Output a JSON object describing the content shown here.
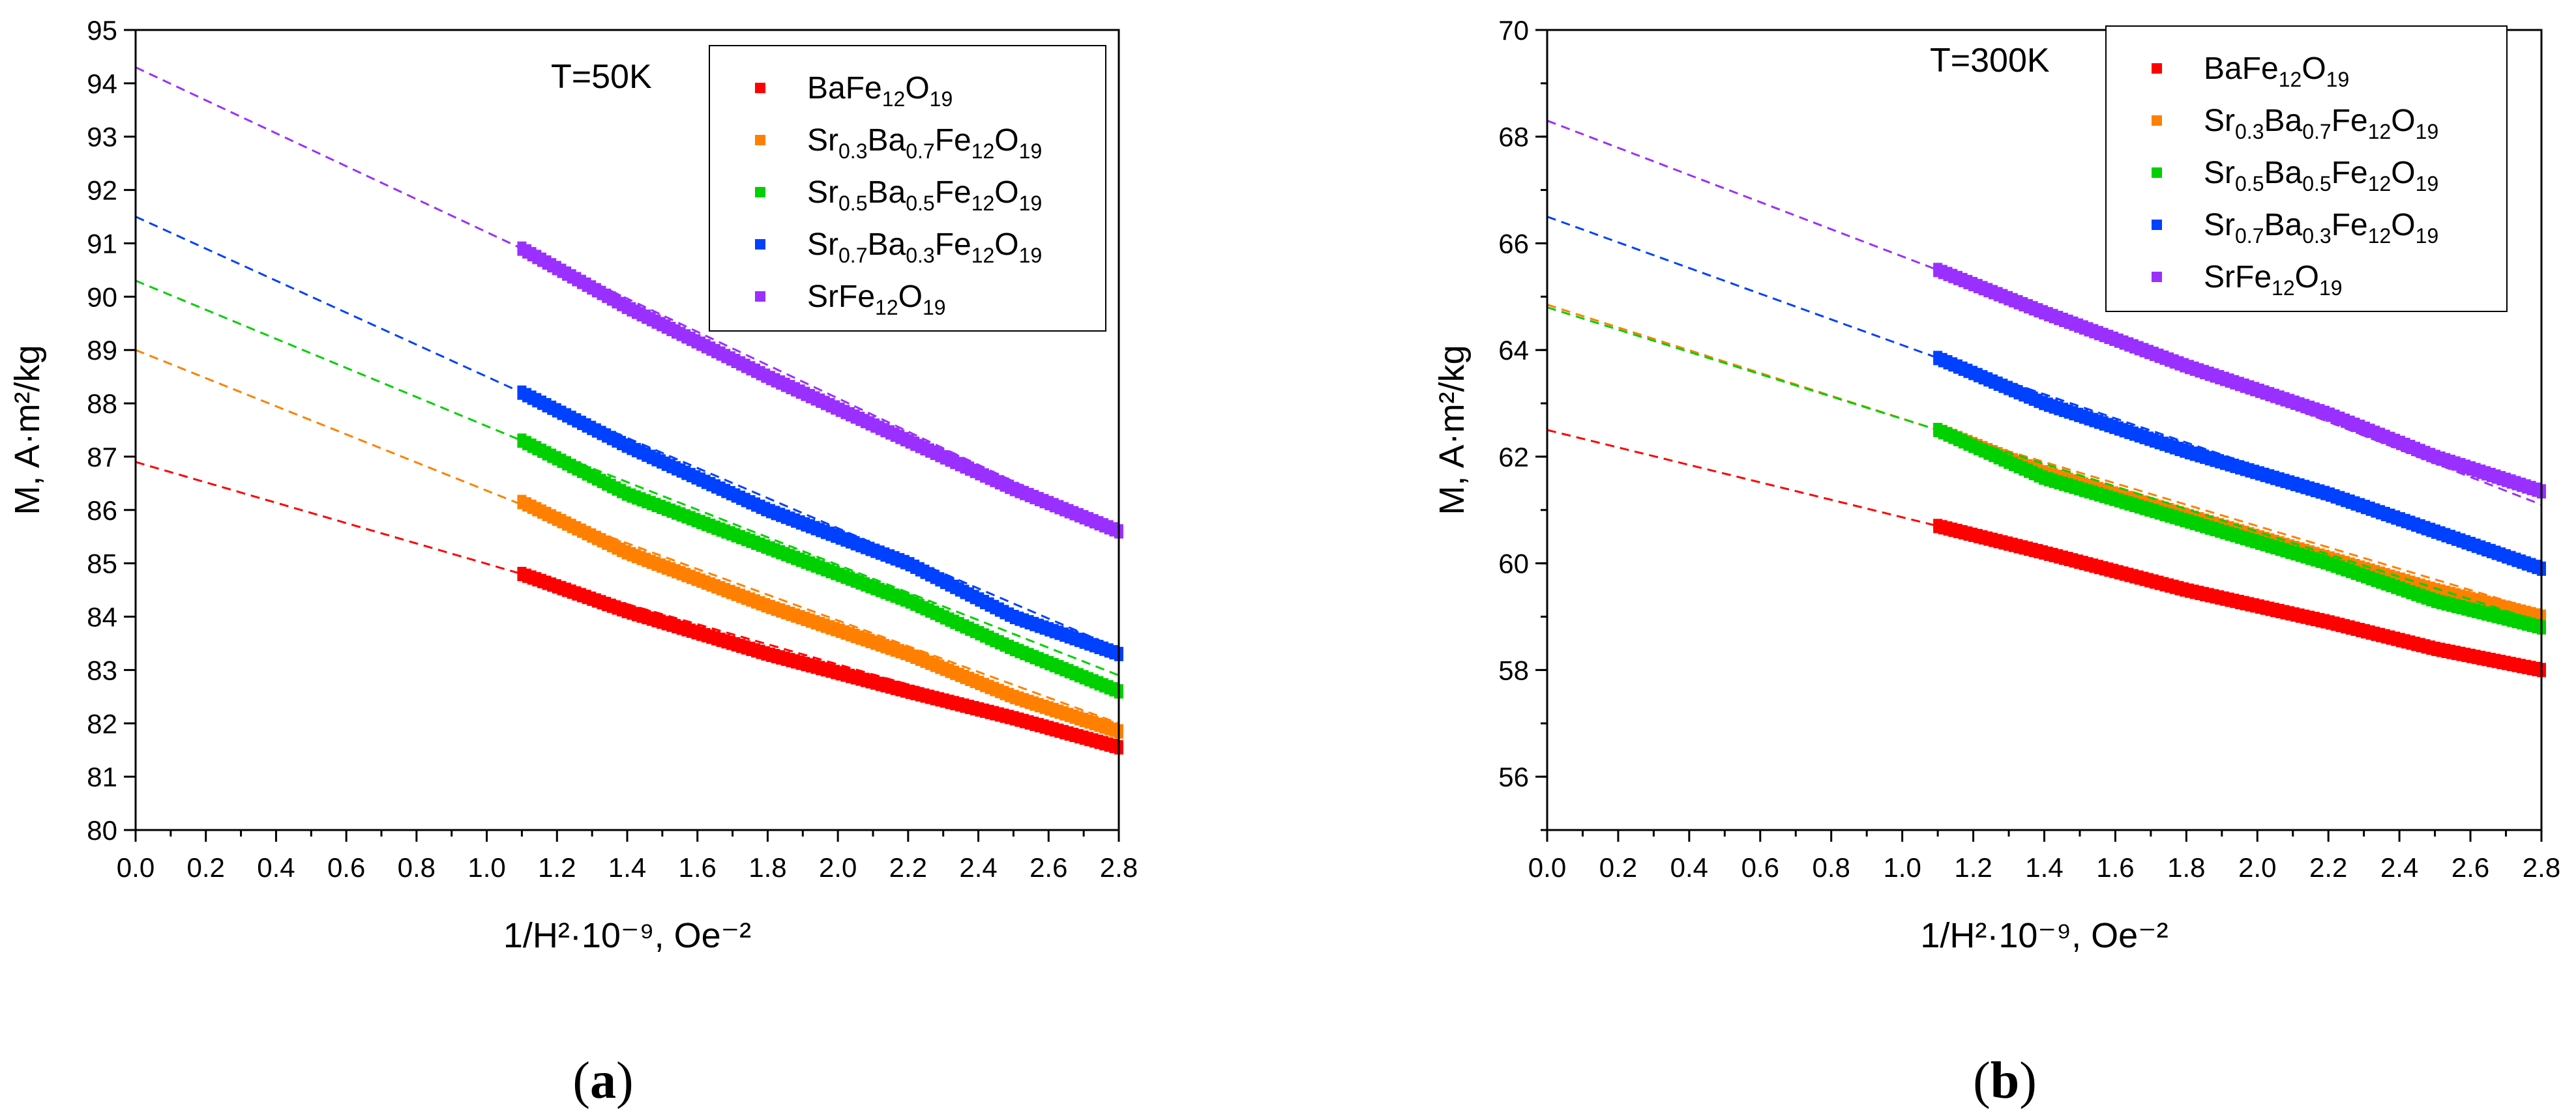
{
  "chart_data": [
    {
      "type": "scatter",
      "panel_label": "(a)",
      "panel_letter": "a",
      "annotation": "T=50K",
      "xlabel": "1/H²·10⁻⁹, Oe⁻²",
      "ylabel": "M, A·m²/kg",
      "xlim": [
        0.0,
        2.8
      ],
      "ylim": [
        80,
        95
      ],
      "x_ticks": [
        "0.0",
        "0.2",
        "0.4",
        "0.6",
        "0.8",
        "1.0",
        "1.2",
        "1.4",
        "1.6",
        "1.8",
        "2.0",
        "2.2",
        "2.4",
        "2.6",
        "2.8"
      ],
      "y_ticks": [
        "80",
        "81",
        "82",
        "83",
        "84",
        "85",
        "86",
        "87",
        "88",
        "89",
        "90",
        "91",
        "92",
        "93",
        "94",
        "95"
      ],
      "legend_position": "top-right",
      "grid": false,
      "series": [
        {
          "name": "BaFe12O19",
          "color": "#ff0000",
          "legend": [
            [
              "Ba"
            ],
            [
              "Fe"
            ],
            [
              "12",
              "sub"
            ],
            [
              "O"
            ],
            [
              "19",
              "sub"
            ]
          ],
          "data_x_range": [
            1.1,
            2.8
          ],
          "points": [
            [
              1.1,
              84.8
            ],
            [
              1.4,
              84.1
            ],
            [
              1.8,
              83.3
            ],
            [
              2.2,
              82.6
            ],
            [
              2.5,
              82.1
            ],
            [
              2.8,
              81.55
            ]
          ],
          "fit_line": [
            [
              0.0,
              86.9
            ],
            [
              1.1,
              84.8
            ],
            [
              2.8,
              81.6
            ]
          ]
        },
        {
          "name": "Sr0.3Ba0.7Fe12O19",
          "color": "#ff8000",
          "legend": [
            [
              "Sr"
            ],
            [
              "0.3",
              "sub"
            ],
            [
              "Ba"
            ],
            [
              "0.7",
              "sub"
            ],
            [
              "Fe"
            ],
            [
              "12",
              "sub"
            ],
            [
              "O"
            ],
            [
              "19",
              "sub"
            ]
          ],
          "data_x_range": [
            1.1,
            2.8
          ],
          "points": [
            [
              1.1,
              86.15
            ],
            [
              1.4,
              85.2
            ],
            [
              1.8,
              84.2
            ],
            [
              2.2,
              83.3
            ],
            [
              2.5,
              82.5
            ],
            [
              2.8,
              81.85
            ]
          ],
          "fit_line": [
            [
              0.0,
              89.0
            ],
            [
              1.1,
              86.1
            ],
            [
              2.8,
              82.0
            ]
          ]
        },
        {
          "name": "Sr0.5Ba0.5Fe12O19",
          "color": "#00d000",
          "legend": [
            [
              "Sr"
            ],
            [
              "0.5",
              "sub"
            ],
            [
              "Ba"
            ],
            [
              "0.5",
              "sub"
            ],
            [
              "Fe"
            ],
            [
              "12",
              "sub"
            ],
            [
              "O"
            ],
            [
              "19",
              "sub"
            ]
          ],
          "data_x_range": [
            1.1,
            2.8
          ],
          "points": [
            [
              1.1,
              87.3
            ],
            [
              1.4,
              86.3
            ],
            [
              1.8,
              85.3
            ],
            [
              2.2,
              84.3
            ],
            [
              2.5,
              83.4
            ],
            [
              2.8,
              82.6
            ]
          ],
          "fit_line": [
            [
              0.0,
              90.3
            ],
            [
              1.1,
              87.3
            ],
            [
              2.8,
              82.9
            ]
          ]
        },
        {
          "name": "Sr0.7Ba0.3Fe12O19",
          "color": "#0040ff",
          "legend": [
            [
              "Sr"
            ],
            [
              "0.7",
              "sub"
            ],
            [
              "Ba"
            ],
            [
              "0.3",
              "sub"
            ],
            [
              "Fe"
            ],
            [
              "12",
              "sub"
            ],
            [
              "O"
            ],
            [
              "19",
              "sub"
            ]
          ],
          "data_x_range": [
            1.1,
            2.8
          ],
          "points": [
            [
              1.1,
              88.2
            ],
            [
              1.4,
              87.2
            ],
            [
              1.8,
              86.0
            ],
            [
              2.2,
              85.0
            ],
            [
              2.5,
              84.0
            ],
            [
              2.8,
              83.3
            ]
          ],
          "fit_line": [
            [
              0.0,
              91.5
            ],
            [
              1.1,
              88.2
            ],
            [
              2.8,
              83.4
            ]
          ]
        },
        {
          "name": "SrFe12O19",
          "color": "#9a30ff",
          "legend": [
            [
              "Sr"
            ],
            [
              "Fe"
            ],
            [
              "12",
              "sub"
            ],
            [
              "O"
            ],
            [
              "19",
              "sub"
            ]
          ],
          "data_x_range": [
            1.1,
            2.8
          ],
          "points": [
            [
              1.1,
              90.9
            ],
            [
              1.4,
              89.8
            ],
            [
              1.8,
              88.5
            ],
            [
              2.2,
              87.3
            ],
            [
              2.5,
              86.4
            ],
            [
              2.8,
              85.6
            ]
          ],
          "fit_line": [
            [
              0.0,
              94.3
            ],
            [
              1.1,
              90.9
            ],
            [
              2.8,
              85.6
            ]
          ]
        }
      ]
    },
    {
      "type": "scatter",
      "panel_label": "(b)",
      "panel_letter": "b",
      "annotation": "T=300K",
      "xlabel": "1/H²·10⁻⁹, Oe⁻²",
      "ylabel": "M, A·m²/kg",
      "xlim": [
        0.0,
        2.8
      ],
      "ylim": [
        55,
        70
      ],
      "x_ticks": [
        "0.0",
        "0.2",
        "0.4",
        "0.6",
        "0.8",
        "1.0",
        "1.2",
        "1.4",
        "1.6",
        "1.8",
        "2.0",
        "2.2",
        "2.4",
        "2.6",
        "2.8"
      ],
      "y_ticks": [
        "56",
        "58",
        "60",
        "62",
        "64",
        "66",
        "68",
        "70"
      ],
      "legend_position": "top-right",
      "grid": false,
      "series": [
        {
          "name": "BaFe12O19",
          "color": "#ff0000",
          "legend": [
            [
              "Ba"
            ],
            [
              "Fe"
            ],
            [
              "12",
              "sub"
            ],
            [
              "O"
            ],
            [
              "19",
              "sub"
            ]
          ],
          "data_x_range": [
            1.1,
            2.8
          ],
          "points": [
            [
              1.1,
              60.7
            ],
            [
              1.4,
              60.2
            ],
            [
              1.8,
              59.5
            ],
            [
              2.2,
              58.9
            ],
            [
              2.5,
              58.4
            ],
            [
              2.8,
              58.0
            ]
          ],
          "fit_line": [
            [
              0.0,
              62.5
            ],
            [
              1.1,
              60.7
            ],
            [
              2.8,
              58.0
            ]
          ]
        },
        {
          "name": "Sr0.3Ba0.7Fe12O19",
          "color": "#ff8000",
          "legend": [
            [
              "Sr"
            ],
            [
              "0.3",
              "sub"
            ],
            [
              "Ba"
            ],
            [
              "0.7",
              "sub"
            ],
            [
              "Fe"
            ],
            [
              "12",
              "sub"
            ],
            [
              "O"
            ],
            [
              "19",
              "sub"
            ]
          ],
          "data_x_range": [
            1.1,
            2.8
          ],
          "points": [
            [
              1.1,
              62.5
            ],
            [
              1.4,
              61.7
            ],
            [
              1.8,
              60.9
            ],
            [
              2.2,
              60.1
            ],
            [
              2.5,
              59.5
            ],
            [
              2.8,
              59.0
            ]
          ],
          "fit_line": [
            [
              0.0,
              64.85
            ],
            [
              1.1,
              62.5
            ],
            [
              2.8,
              59.1
            ]
          ]
        },
        {
          "name": "Sr0.5Ba0.5Fe12O19",
          "color": "#00d000",
          "legend": [
            [
              "Sr"
            ],
            [
              "0.5",
              "sub"
            ],
            [
              "Ba"
            ],
            [
              "0.5",
              "sub"
            ],
            [
              "Fe"
            ],
            [
              "12",
              "sub"
            ],
            [
              "O"
            ],
            [
              "19",
              "sub"
            ]
          ],
          "data_x_range": [
            1.1,
            2.8
          ],
          "points": [
            [
              1.1,
              62.5
            ],
            [
              1.4,
              61.6
            ],
            [
              1.8,
              60.8
            ],
            [
              2.2,
              60.0
            ],
            [
              2.5,
              59.3
            ],
            [
              2.8,
              58.8
            ]
          ],
          "fit_line": [
            [
              0.0,
              64.8
            ],
            [
              1.1,
              62.5
            ],
            [
              2.8,
              58.9
            ]
          ]
        },
        {
          "name": "Sr0.7Ba0.3Fe12O19",
          "color": "#0040ff",
          "legend": [
            [
              "Sr"
            ],
            [
              "0.7",
              "sub"
            ],
            [
              "Ba"
            ],
            [
              "0.3",
              "sub"
            ],
            [
              "Fe"
            ],
            [
              "12",
              "sub"
            ],
            [
              "O"
            ],
            [
              "19",
              "sub"
            ]
          ],
          "data_x_range": [
            1.1,
            2.8
          ],
          "points": [
            [
              1.1,
              63.85
            ],
            [
              1.4,
              63.0
            ],
            [
              1.8,
              62.1
            ],
            [
              2.2,
              61.3
            ],
            [
              2.5,
              60.6
            ],
            [
              2.8,
              59.9
            ]
          ],
          "fit_line": [
            [
              0.0,
              66.5
            ],
            [
              1.1,
              63.85
            ],
            [
              2.8,
              60.0
            ]
          ]
        },
        {
          "name": "SrFe12O19",
          "color": "#9a30ff",
          "legend": [
            [
              "Sr"
            ],
            [
              "Fe"
            ],
            [
              "12",
              "sub"
            ],
            [
              "O"
            ],
            [
              "19",
              "sub"
            ]
          ],
          "data_x_range": [
            1.1,
            2.8
          ],
          "points": [
            [
              1.1,
              65.5
            ],
            [
              1.4,
              64.7
            ],
            [
              1.8,
              63.7
            ],
            [
              2.2,
              62.8
            ],
            [
              2.5,
              62.0
            ],
            [
              2.8,
              61.35
            ]
          ],
          "fit_line": [
            [
              0.0,
              68.3
            ],
            [
              1.1,
              65.5
            ],
            [
              2.8,
              61.1
            ]
          ]
        }
      ]
    }
  ]
}
